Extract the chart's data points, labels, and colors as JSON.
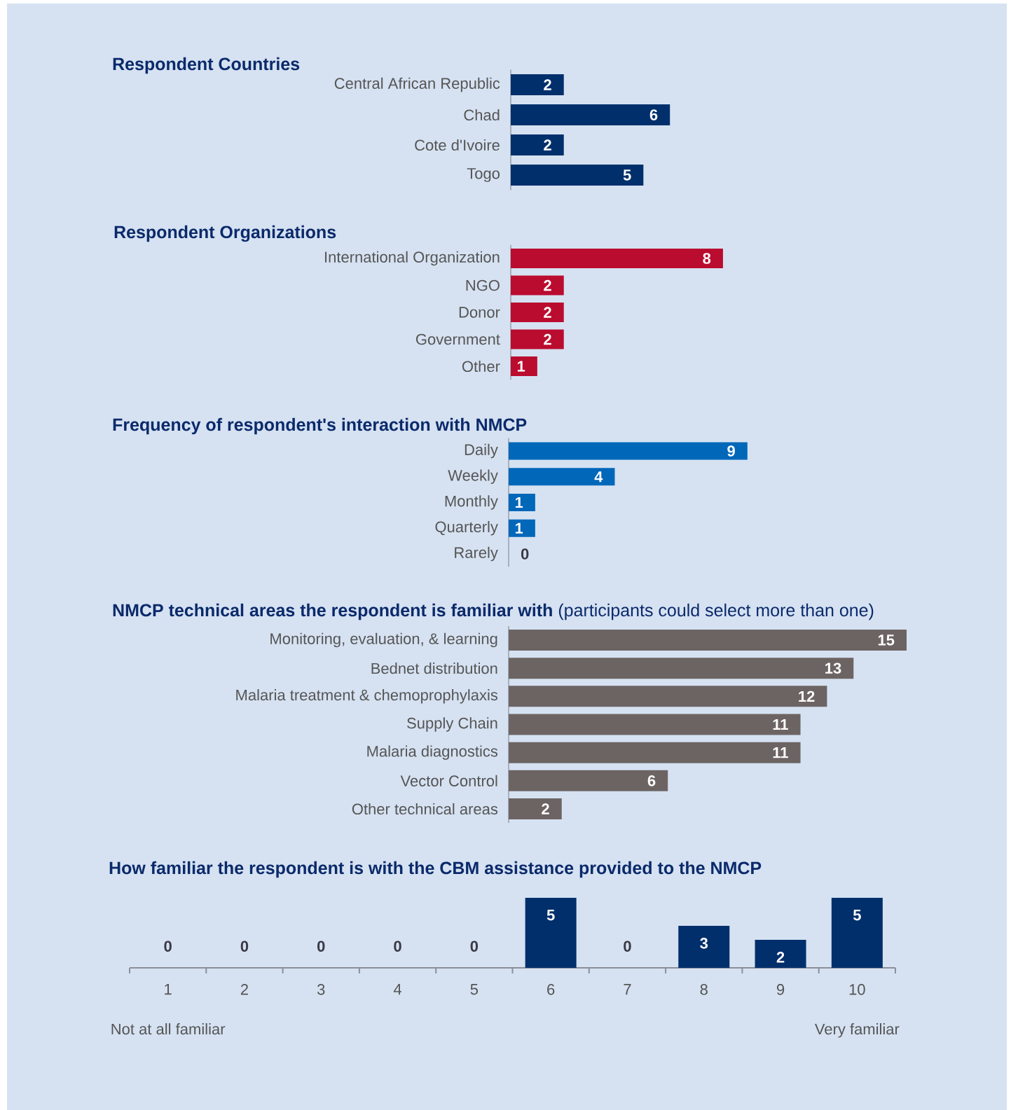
{
  "chart_data": [
    {
      "type": "bar",
      "orientation": "horizontal",
      "title": "Respondent Countries",
      "categories": [
        "Central African Republic",
        "Chad",
        "Cote d'Ivoire",
        "Togo"
      ],
      "values": [
        2,
        6,
        2,
        5
      ],
      "color": "#002f6c",
      "data_labels": true
    },
    {
      "type": "bar",
      "orientation": "horizontal",
      "title": "Respondent Organizations",
      "categories": [
        "International Organization",
        "NGO",
        "Donor",
        "Government",
        "Other"
      ],
      "values": [
        8,
        2,
        2,
        2,
        1
      ],
      "color": "#ba0c2f",
      "data_labels": true
    },
    {
      "type": "bar",
      "orientation": "horizontal",
      "title": "Frequency of respondent's interaction with NMCP",
      "categories": [
        "Daily",
        "Weekly",
        "Monthly",
        "Quarterly",
        "Rarely"
      ],
      "values": [
        9,
        4,
        1,
        1,
        0
      ],
      "color": "#0067b9",
      "data_labels": true
    },
    {
      "type": "bar",
      "orientation": "horizontal",
      "title": "**NMCP technical areas the respondent is familiar with** (participants could select more than one)",
      "categories": [
        "Monitoring, evaluation, & learning",
        "Bednet distribution",
        "Malaria treatment & chemoprophylaxis",
        "Supply Chain",
        "Malaria diagnostics",
        "Vector Control",
        "Other technical areas"
      ],
      "values": [
        15,
        13,
        12,
        11,
        11,
        6,
        2
      ],
      "color": "#6c6463",
      "data_labels": true
    },
    {
      "type": "bar",
      "title": "How familiar the respondent is with the CBM assistance provided to the NMCP",
      "categories": [
        "1",
        "2",
        "3",
        "4",
        "5",
        "6",
        "7",
        "8",
        "9",
        "10"
      ],
      "values": [
        0,
        0,
        0,
        0,
        0,
        5,
        0,
        3,
        2,
        5
      ],
      "color": "#002f6c",
      "data_labels": true,
      "annotations": [
        "Not at all familiar",
        "Very familiar"
      ]
    }
  ]
}
